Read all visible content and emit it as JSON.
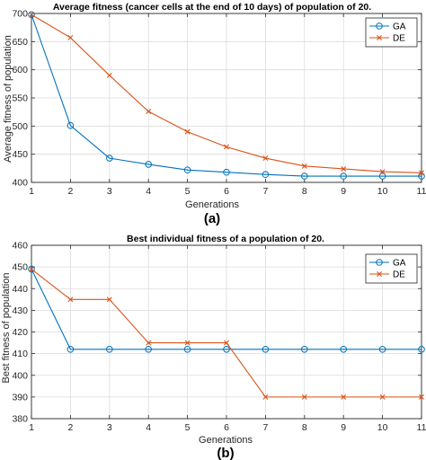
{
  "colors": {
    "ga": "#0072BD",
    "de": "#D95319"
  },
  "chart_data": [
    {
      "type": "line",
      "title": "Average fitness (cancer cells at the end of 10 days) of population of 20.",
      "xlabel": "Generations",
      "ylabel": "Average fitness of population",
      "panel_label": "(a)",
      "x": [
        1,
        2,
        3,
        4,
        5,
        6,
        7,
        8,
        9,
        10,
        11
      ],
      "xlim": [
        1,
        11
      ],
      "ylim": [
        400,
        700
      ],
      "yticks": [
        400,
        450,
        500,
        550,
        600,
        650,
        700
      ],
      "grid": true,
      "legend_position": "top-right",
      "series": [
        {
          "name": "GA",
          "marker": "circle",
          "values": [
            698,
            501,
            443,
            432,
            422,
            418,
            414,
            411,
            411,
            411,
            411
          ]
        },
        {
          "name": "DE",
          "marker": "x",
          "values": [
            698,
            657,
            590,
            526,
            490,
            463,
            443,
            429,
            424,
            419,
            417
          ]
        }
      ]
    },
    {
      "type": "line",
      "title": "Best individual fitness of a population of 20.",
      "xlabel": "Generations",
      "ylabel": "Best fitness of population",
      "panel_label": "(b)",
      "x": [
        1,
        2,
        3,
        4,
        5,
        6,
        7,
        8,
        9,
        10,
        11
      ],
      "xlim": [
        1,
        11
      ],
      "ylim": [
        380,
        460
      ],
      "yticks": [
        380,
        390,
        400,
        410,
        420,
        430,
        440,
        450,
        460
      ],
      "grid": true,
      "legend_position": "top-right",
      "series": [
        {
          "name": "GA",
          "marker": "circle",
          "values": [
            449,
            412,
            412,
            412,
            412,
            412,
            412,
            412,
            412,
            412,
            412
          ]
        },
        {
          "name": "DE",
          "marker": "x",
          "values": [
            449,
            435,
            435,
            415,
            415,
            415,
            390,
            390,
            390,
            390,
            390
          ]
        }
      ]
    }
  ]
}
